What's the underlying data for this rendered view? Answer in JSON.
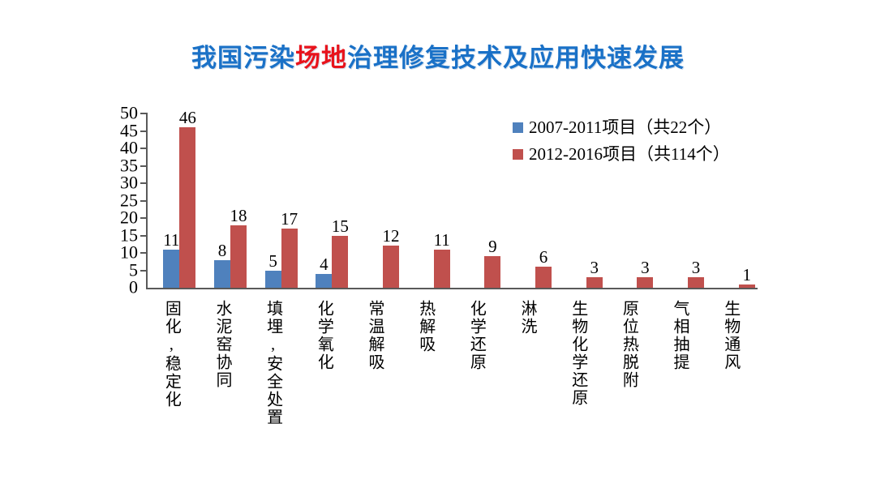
{
  "title": {
    "part1": "我国污染",
    "highlight": "场地",
    "part2": "治理修复技术及应用快速发展"
  },
  "colors": {
    "title_blue": "#1a71c7",
    "title_red": "#e8131c",
    "axis": "#595959",
    "series1_blue": "#4F81BD",
    "series2_red": "#C0504D",
    "background": "#ffffff",
    "text": "#000000"
  },
  "chart_data": {
    "type": "bar",
    "title": "我国污染场地治理修复技术及应用快速发展",
    "categories": [
      "固化,稳定化",
      "水泥窑协同",
      "填埋,安全处置",
      "化学氧化",
      "常温解吸",
      "热解吸",
      "化学还原",
      "淋洗",
      "生物化学还原",
      "原位热脱附",
      "气相抽提",
      "生物通风"
    ],
    "series": [
      {
        "name": "2007-2011项目（共22个）",
        "color": "#4F81BD",
        "values": [
          11,
          8,
          5,
          4,
          null,
          null,
          null,
          null,
          null,
          null,
          null,
          null
        ]
      },
      {
        "name": "2012-2016项目（共114个）",
        "color": "#C0504D",
        "values": [
          46,
          18,
          17,
          15,
          12,
          11,
          9,
          6,
          3,
          3,
          3,
          1
        ]
      }
    ],
    "ylim": [
      0,
      50
    ],
    "yticks": [
      0,
      5,
      10,
      15,
      20,
      25,
      30,
      35,
      40,
      45,
      50
    ],
    "legend_position": "top-right",
    "grid": false,
    "xlabel": "",
    "ylabel": ""
  }
}
